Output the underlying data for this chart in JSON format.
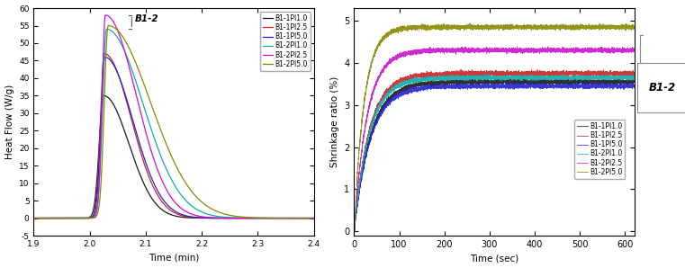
{
  "left_chart": {
    "xlabel": "Time (min)",
    "ylabel": "Heat Flow (W/g)",
    "xlim": [
      1.9,
      2.4
    ],
    "ylim": [
      -5,
      60
    ],
    "yticks": [
      -5,
      0,
      5,
      10,
      15,
      20,
      25,
      30,
      35,
      40,
      45,
      50,
      55,
      60
    ],
    "xticks": [
      1.9,
      2.0,
      2.1,
      2.2,
      2.3,
      2.4
    ],
    "annotation": "B1-2",
    "series": [
      {
        "label": "B1-1PI1.0",
        "color": "#1a1a1a",
        "peak_x": 2.025,
        "peak_y": 35,
        "rise": 0.008,
        "fall": 0.045
      },
      {
        "label": "B1-1PI2.5",
        "color": "#cc2222",
        "peak_x": 2.026,
        "peak_y": 47,
        "rise": 0.007,
        "fall": 0.048
      },
      {
        "label": "B1-1PI5.0",
        "color": "#2222cc",
        "peak_x": 2.027,
        "peak_y": 46,
        "rise": 0.007,
        "fall": 0.05
      },
      {
        "label": "B1-2PI1.0",
        "color": "#11aaaa",
        "peak_x": 2.03,
        "peak_y": 54,
        "rise": 0.007,
        "fall": 0.065
      },
      {
        "label": "B1-2PI2.5",
        "color": "#cc11cc",
        "peak_x": 2.028,
        "peak_y": 58,
        "rise": 0.006,
        "fall": 0.055
      },
      {
        "label": "B1-2PI5.0",
        "color": "#888800",
        "peak_x": 2.033,
        "peak_y": 55,
        "rise": 0.007,
        "fall": 0.075
      }
    ]
  },
  "right_chart": {
    "xlabel": "Time (sec)",
    "ylabel": "Shrinkage ratio (%)",
    "xlim": [
      0,
      620
    ],
    "ylim": [
      -0.1,
      5.3
    ],
    "yticks": [
      0,
      1,
      2,
      3,
      4,
      5
    ],
    "xticks": [
      0,
      100,
      200,
      300,
      400,
      500,
      600
    ],
    "annotation": "B1-2",
    "series": [
      {
        "label": "B1-1PI1.0",
        "color": "#1a1a1a",
        "plateau": 3.55,
        "rate": 0.028
      },
      {
        "label": "B1-1PI2.5",
        "color": "#cc2222",
        "plateau": 3.75,
        "rate": 0.03
      },
      {
        "label": "B1-1PI5.0",
        "color": "#2222cc",
        "plateau": 3.45,
        "rate": 0.028
      },
      {
        "label": "B1-2PI1.0",
        "color": "#11aaaa",
        "plateau": 3.65,
        "rate": 0.03
      },
      {
        "label": "B1-2PI2.5",
        "color": "#cc11cc",
        "plateau": 4.3,
        "rate": 0.035
      },
      {
        "label": "B1-2PI5.0",
        "color": "#888800",
        "plateau": 4.85,
        "rate": 0.045
      }
    ]
  }
}
